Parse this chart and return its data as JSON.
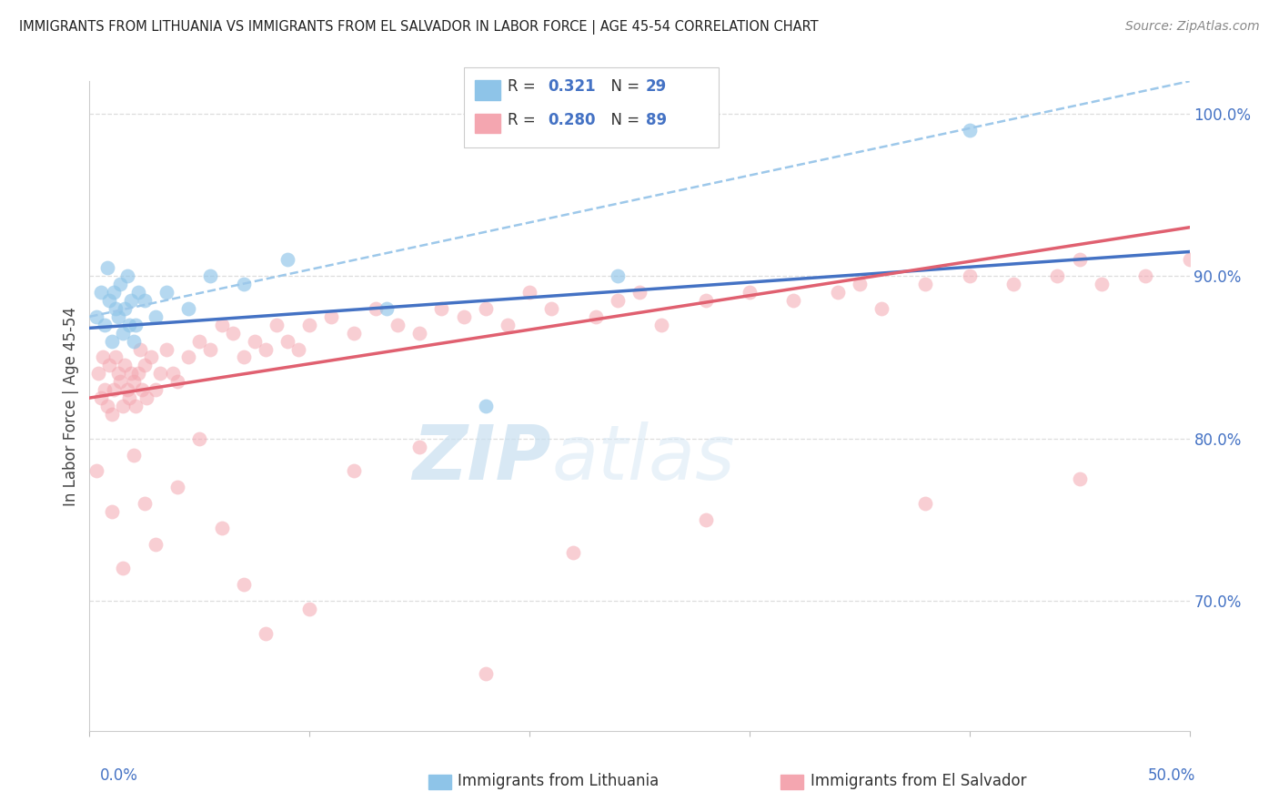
{
  "title": "IMMIGRANTS FROM LITHUANIA VS IMMIGRANTS FROM EL SALVADOR IN LABOR FORCE | AGE 45-54 CORRELATION CHART",
  "source": "Source: ZipAtlas.com",
  "ylabel": "In Labor Force | Age 45-54",
  "xlim": [
    0.0,
    50.0
  ],
  "ylim": [
    62.0,
    102.0
  ],
  "ytick_vals": [
    70.0,
    80.0,
    90.0,
    100.0
  ],
  "ytick_labels": [
    "70.0%",
    "80.0%",
    "90.0%",
    "100.0%"
  ],
  "color_lithuania": "#8ec4e8",
  "color_el_salvador": "#f4a6b0",
  "color_lithuania_line": "#4472c4",
  "color_el_salvador_line": "#e06070",
  "color_lithuania_ci": "#9dc8ea",
  "watermark_zip": "ZIP",
  "watermark_atlas": "atlas",
  "legend_r_lith": "0.321",
  "legend_n_lith": "29",
  "legend_r_esal": "0.280",
  "legend_n_esal": "89",
  "lith_x": [
    0.3,
    0.5,
    0.7,
    0.8,
    0.9,
    1.0,
    1.1,
    1.2,
    1.3,
    1.4,
    1.5,
    1.6,
    1.7,
    1.8,
    1.9,
    2.0,
    2.1,
    2.2,
    2.5,
    3.0,
    3.5,
    4.5,
    5.5,
    7.0,
    9.0,
    13.5,
    18.0,
    24.0,
    40.0
  ],
  "lith_y": [
    87.5,
    89.0,
    87.0,
    90.5,
    88.5,
    86.0,
    89.0,
    88.0,
    87.5,
    89.5,
    86.5,
    88.0,
    90.0,
    87.0,
    88.5,
    86.0,
    87.0,
    89.0,
    88.5,
    87.5,
    89.0,
    88.0,
    90.0,
    89.5,
    91.0,
    88.0,
    82.0,
    90.0,
    99.0
  ],
  "esal_x": [
    0.4,
    0.5,
    0.6,
    0.7,
    0.8,
    0.9,
    1.0,
    1.1,
    1.2,
    1.3,
    1.4,
    1.5,
    1.6,
    1.7,
    1.8,
    1.9,
    2.0,
    2.1,
    2.2,
    2.3,
    2.4,
    2.5,
    2.6,
    2.8,
    3.0,
    3.2,
    3.5,
    3.8,
    4.0,
    4.5,
    5.0,
    5.5,
    6.0,
    6.5,
    7.0,
    7.5,
    8.0,
    8.5,
    9.0,
    9.5,
    10.0,
    11.0,
    12.0,
    13.0,
    14.0,
    15.0,
    16.0,
    17.0,
    18.0,
    19.0,
    20.0,
    21.0,
    23.0,
    24.0,
    25.0,
    26.0,
    28.0,
    30.0,
    32.0,
    34.0,
    35.0,
    36.0,
    38.0,
    40.0,
    42.0,
    44.0,
    45.0,
    46.0,
    48.0,
    50.0,
    0.3,
    1.0,
    1.5,
    2.0,
    2.5,
    3.0,
    4.0,
    5.0,
    6.0,
    7.0,
    8.0,
    10.0,
    12.0,
    15.0,
    18.0,
    22.0,
    28.0,
    38.0,
    45.0
  ],
  "esal_y": [
    84.0,
    82.5,
    85.0,
    83.0,
    82.0,
    84.5,
    81.5,
    83.0,
    85.0,
    84.0,
    83.5,
    82.0,
    84.5,
    83.0,
    82.5,
    84.0,
    83.5,
    82.0,
    84.0,
    85.5,
    83.0,
    84.5,
    82.5,
    85.0,
    83.0,
    84.0,
    85.5,
    84.0,
    83.5,
    85.0,
    86.0,
    85.5,
    87.0,
    86.5,
    85.0,
    86.0,
    85.5,
    87.0,
    86.0,
    85.5,
    87.0,
    87.5,
    86.5,
    88.0,
    87.0,
    86.5,
    88.0,
    87.5,
    88.0,
    87.0,
    89.0,
    88.0,
    87.5,
    88.5,
    89.0,
    87.0,
    88.5,
    89.0,
    88.5,
    89.0,
    89.5,
    88.0,
    89.5,
    90.0,
    89.5,
    90.0,
    91.0,
    89.5,
    90.0,
    91.0,
    78.0,
    75.5,
    72.0,
    79.0,
    76.0,
    73.5,
    77.0,
    80.0,
    74.5,
    71.0,
    68.0,
    69.5,
    78.0,
    79.5,
    65.5,
    73.0,
    75.0,
    76.0,
    77.5
  ]
}
